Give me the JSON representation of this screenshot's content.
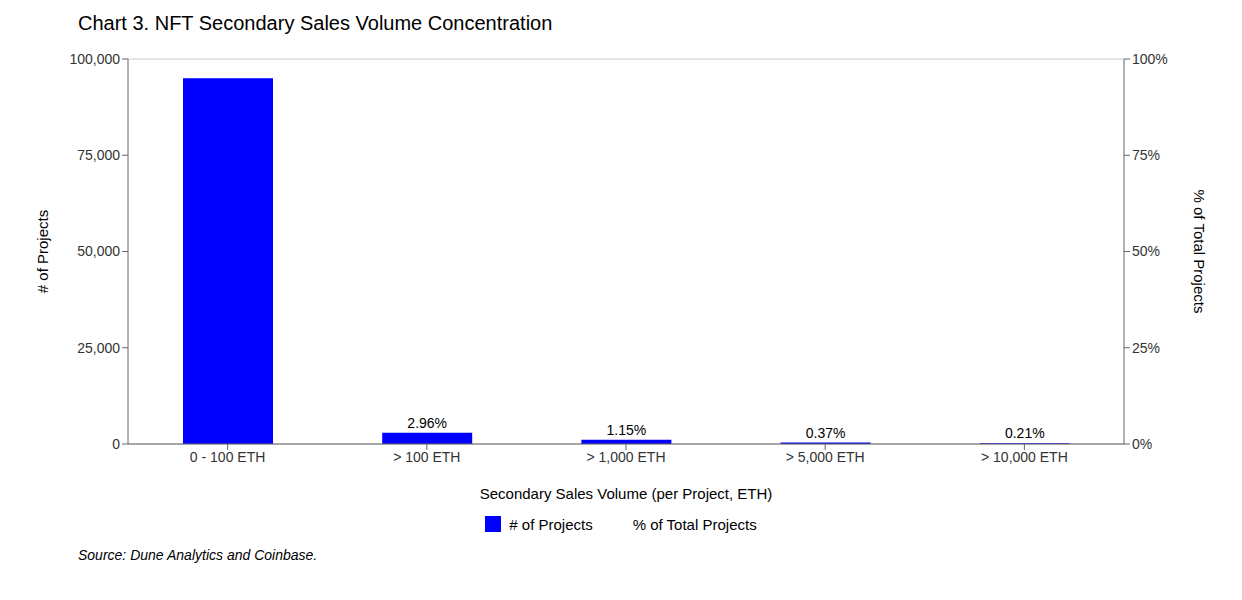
{
  "chart_data": {
    "type": "bar",
    "title": "Chart 3. NFT Secondary Sales Volume Concentration",
    "categories": [
      "0 - 100 ETH",
      "> 100 ETH",
      "> 1,000 ETH",
      "> 5,000 ETH",
      "> 10,000 ETH"
    ],
    "values": [
      95000,
      2890,
      1124,
      361,
      205
    ],
    "color": "#0000FF",
    "annotations": [
      {
        "category": "> 100 ETH",
        "text": "2.96%"
      },
      {
        "category": "> 1,000 ETH",
        "text": "1.15%"
      },
      {
        "category": "> 5,000 ETH",
        "text": "0.37%"
      },
      {
        "category": "> 10,000 ETH",
        "text": "0.21%"
      }
    ],
    "xlabel": "Secondary Sales Volume (per Project, ETH)",
    "ylabel": "# of Projects",
    "y2label": "% of Total Projects",
    "ylim": [
      0,
      100000
    ],
    "yticks": [
      0,
      {
        "value": 25000,
        "label": "25,000"
      },
      {
        "value": 50000,
        "label": "50,000"
      },
      {
        "value": 75000,
        "label": "75,000"
      },
      {
        "value": 100000,
        "label": "100,000"
      }
    ],
    "y2lim": [
      0,
      1.0
    ],
    "y2ticks": [
      {
        "value": 0,
        "label": "0%"
      },
      {
        "value": 0.25,
        "label": "25%"
      },
      {
        "value": 0.5,
        "label": "50%"
      },
      {
        "value": 0.75,
        "label": "75%"
      },
      {
        "value": 1.0,
        "label": "100%"
      }
    ],
    "grid": true,
    "legend": "bottom",
    "legend_labels": [
      "# of Projects",
      "% of Total Projects"
    ],
    "source": "Source: Dune Analytics and Coinbase."
  }
}
